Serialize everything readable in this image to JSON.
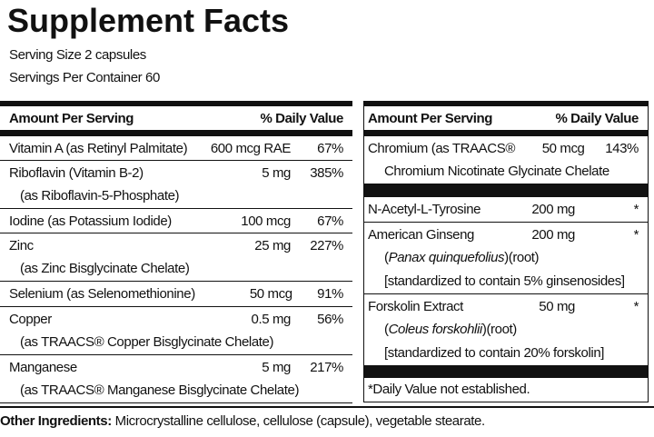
{
  "title": "Supplement Facts",
  "serving_size": "Serving Size 2 capsules",
  "servings_per_container": "Servings Per Container 60",
  "left_table": {
    "header": {
      "amount": "Amount Per Serving",
      "dv": "% Daily Value"
    },
    "rows": [
      {
        "name": "Vitamin A (as Retinyl Palmitate)",
        "amount": "600 mcg RAE",
        "dv": "67%"
      },
      {
        "name": "Riboflavin (Vitamin B-2)",
        "amount": "5 mg",
        "dv": "385%",
        "details": [
          "(as Riboflavin-5-Phosphate)"
        ]
      },
      {
        "name": "Iodine (as Potassium Iodide)",
        "amount": "100 mcg",
        "dv": "67%"
      },
      {
        "name": "Zinc",
        "amount": "25 mg",
        "dv": "227%",
        "details": [
          "(as Zinc Bisglycinate Chelate)"
        ]
      },
      {
        "name": "Selenium (as Selenomethionine)",
        "amount": "50 mcg",
        "dv": "91%"
      },
      {
        "name": "Copper",
        "amount": "0.5 mg",
        "dv": "56%",
        "details": [
          "(as TRAACS® Copper Bisglycinate Chelate)"
        ]
      },
      {
        "name": "Manganese",
        "amount": "5 mg",
        "dv": "217%",
        "details": [
          "(as TRAACS® Manganese Bisglycinate Chelate)"
        ]
      }
    ]
  },
  "right_table": {
    "header": {
      "amount": "Amount Per Serving",
      "dv": "% Daily Value"
    },
    "rows": [
      {
        "name": "Chromium (as TRAACS®",
        "amount": "50 mcg",
        "dv": "143%",
        "details": [
          "Chromium Nicotinate Glycinate Chelate"
        ]
      },
      {
        "name": "N-Acetyl-L-Tyrosine",
        "amount": "200 mg",
        "dv": "*"
      },
      {
        "name": "American Ginseng",
        "amount": "200 mg",
        "dv": "*",
        "botanical": [
          "(",
          "Panax quinquefolius",
          ")(root)"
        ],
        "details": [
          "[standardized to contain 5% ginsenosides]"
        ]
      },
      {
        "name": "Forskolin Extract",
        "amount": "50 mg",
        "dv": "*",
        "botanical": [
          "(",
          "Coleus forskohlii",
          ")(root)"
        ],
        "details": [
          "[standardized to contain 20% forskolin]"
        ]
      }
    ],
    "footnote": "*Daily Value not established."
  },
  "other_ingredients": {
    "label": "Other Ingredients:",
    "text": "Microcrystalline cellulose, cellulose (capsule), vegetable stearate."
  }
}
